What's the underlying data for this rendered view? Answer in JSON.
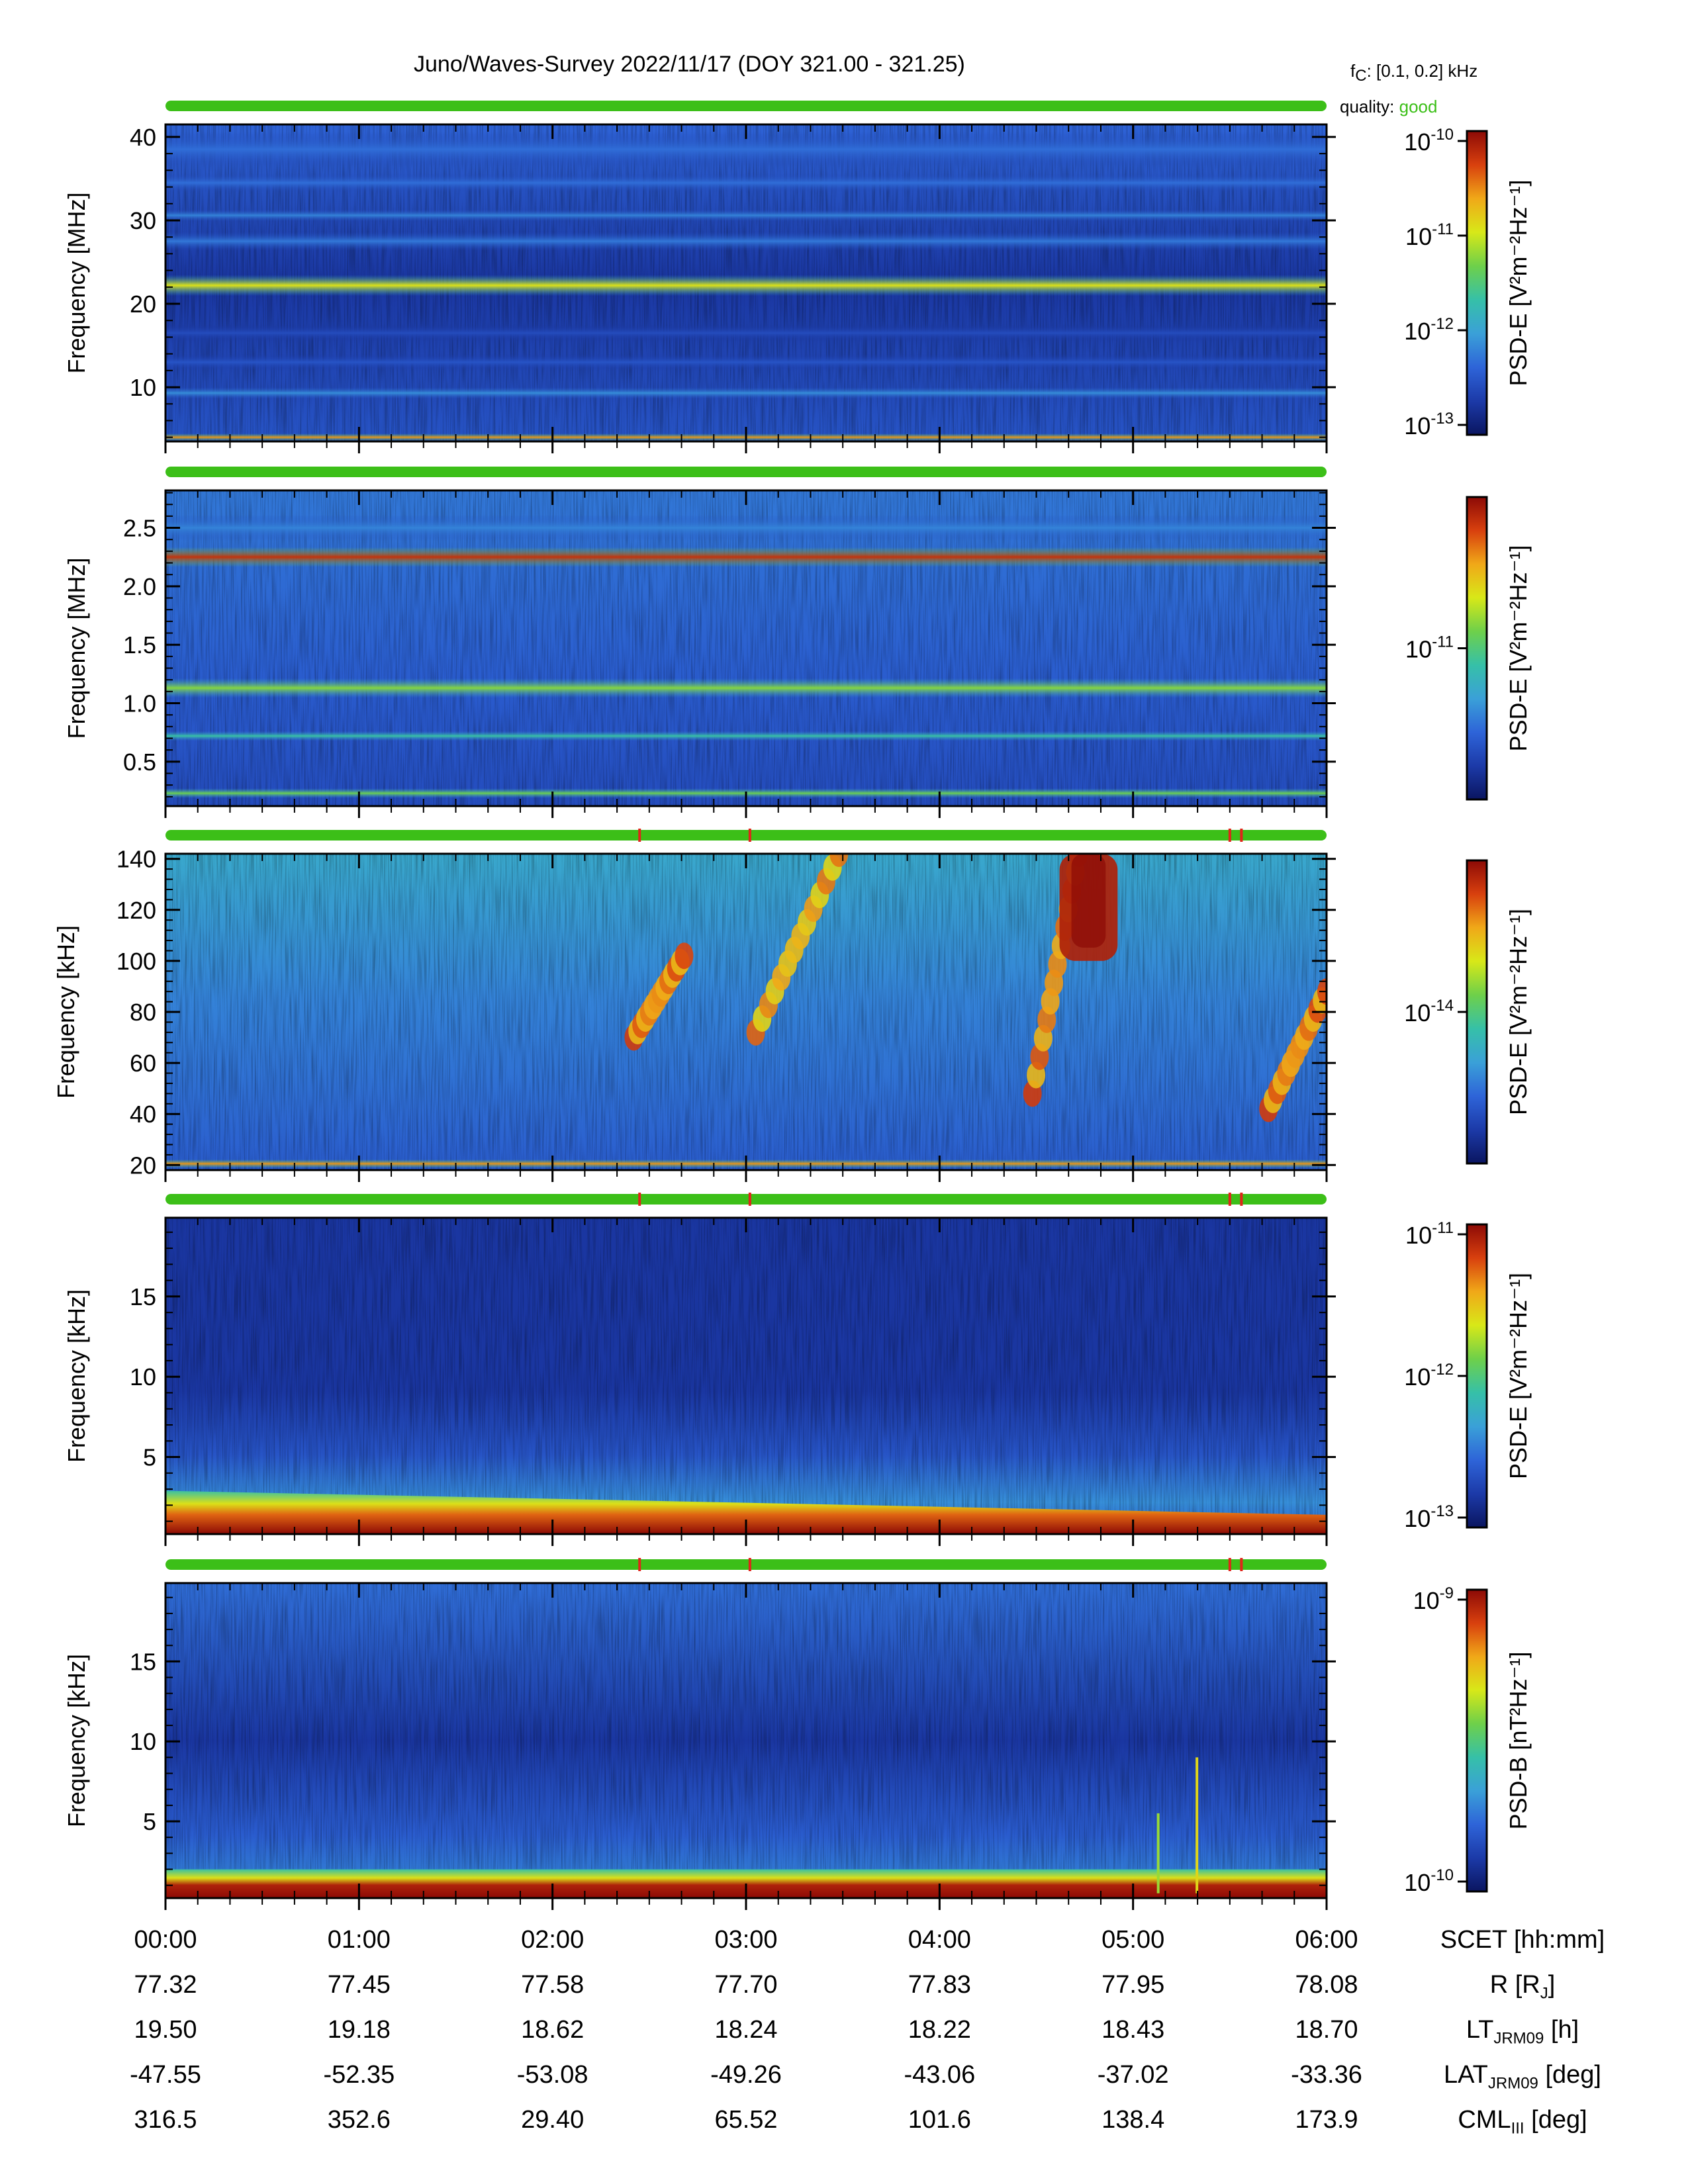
{
  "header": {
    "title": "Juno/Waves-Survey  2022/11/17 (DOY 321.00 - 321.25)",
    "fc_label": "f",
    "fc_sub": "C",
    "fc_value": ": [0.1, 0.2] kHz",
    "quality_label": "quality:",
    "quality_value": "good"
  },
  "colors": {
    "quality_good": "#3cbf18",
    "quality_flag": "#e0251a",
    "colormap": [
      "#0a1560",
      "#1c3aa8",
      "#2e64d8",
      "#3aa0d8",
      "#36c0a8",
      "#6ed04a",
      "#d8e818",
      "#f0a818",
      "#d8400e",
      "#8c0a06"
    ]
  },
  "chart_data": [
    {
      "type": "heatmap",
      "ylabel": "Frequency [MHz]",
      "yticks": [
        10,
        20,
        30,
        40
      ],
      "ylim": [
        3.5,
        41.5
      ],
      "colorbar_label": "PSD-E [V²m⁻²Hz⁻¹]",
      "colorbar_ticks": [
        "10-10",
        "10-11",
        "10-12",
        "10-13"
      ],
      "colorbar_tick_exps": [
        "-10",
        "-11",
        "-12",
        "-13"
      ],
      "quality_flags": [],
      "features": [
        {
          "feature": "band",
          "f": 22.2,
          "width": 0.9,
          "level": 0.68
        },
        {
          "feature": "band",
          "f": 30.6,
          "width": 0.5,
          "level": 0.28
        },
        {
          "feature": "band",
          "f": 27.5,
          "width": 0.8,
          "level": 0.26
        },
        {
          "feature": "band",
          "f": 34.5,
          "width": 0.8,
          "level": 0.24
        },
        {
          "feature": "band",
          "f": 38.5,
          "width": 1.5,
          "level": 0.24
        },
        {
          "feature": "band",
          "f": 9.3,
          "width": 0.5,
          "level": 0.3
        },
        {
          "feature": "band",
          "f": 13.0,
          "width": 0.7,
          "level": 0.18
        },
        {
          "feature": "band",
          "f": 16.5,
          "width": 0.7,
          "level": 0.16
        },
        {
          "feature": "band",
          "f": 4.0,
          "width": 0.25,
          "level": 0.8
        }
      ]
    },
    {
      "type": "heatmap",
      "ylabel": "Frequency [MHz]",
      "yticks": [
        0.5,
        1.0,
        1.5,
        2.0,
        2.5
      ],
      "ytick_labels": [
        "0.5",
        "1.0",
        "1.5",
        "2.0",
        "2.5"
      ],
      "ylim": [
        0.12,
        2.82
      ],
      "colorbar_label": "PSD-E [V²m⁻²Hz⁻¹]",
      "colorbar_ticks": [
        "10-11"
      ],
      "colorbar_tick_exps": [
        "-11"
      ],
      "quality_flags": [],
      "features": [
        {
          "feature": "band",
          "f": 2.25,
          "width": 0.06,
          "level": 0.92
        },
        {
          "feature": "band",
          "f": 1.13,
          "width": 0.06,
          "level": 0.58
        },
        {
          "feature": "band",
          "f": 0.72,
          "width": 0.03,
          "level": 0.45
        },
        {
          "feature": "band",
          "f": 0.23,
          "width": 0.03,
          "level": 0.55
        },
        {
          "feature": "band",
          "f": 2.5,
          "width": 0.08,
          "level": 0.28
        }
      ]
    },
    {
      "type": "heatmap",
      "ylabel": "Frequency [kHz]",
      "yticks": [
        20,
        40,
        60,
        80,
        100,
        120,
        140
      ],
      "ylim": [
        18,
        142
      ],
      "colorbar_label": "PSD-E [V²m⁻²Hz⁻¹]",
      "colorbar_ticks": [
        "10-14"
      ],
      "colorbar_tick_exps": [
        "-14"
      ],
      "quality_flags": [
        2.45,
        3.02,
        5.5,
        5.56
      ],
      "features": [
        {
          "feature": "band",
          "f": 20.5,
          "width": 1.2,
          "level": 0.8
        },
        {
          "feature": "burst",
          "t0": 2.42,
          "t1": 2.68,
          "f0": 70,
          "f1": 102,
          "level": 0.9
        },
        {
          "feature": "burst",
          "t0": 3.05,
          "t1": 3.48,
          "f0": 72,
          "f1": 142,
          "level": 0.85
        },
        {
          "feature": "burst",
          "t0": 4.48,
          "t1": 4.72,
          "f0": 48,
          "f1": 142,
          "level": 0.9
        },
        {
          "feature": "patch",
          "t0": 4.62,
          "t1": 4.92,
          "f0": 100,
          "f1": 142,
          "level": 0.95
        },
        {
          "feature": "burst",
          "t0": 5.7,
          "t1": 6.0,
          "f0": 42,
          "f1": 88,
          "level": 0.9
        }
      ]
    },
    {
      "type": "heatmap",
      "ylabel": "Frequency [kHz]",
      "yticks": [
        5,
        10,
        15
      ],
      "ylim": [
        0.2,
        19.9
      ],
      "colorbar_label": "PSD-E [V²m⁻²Hz⁻¹]",
      "colorbar_ticks": [
        "10-11",
        "10-12",
        "10-13"
      ],
      "colorbar_tick_exps": [
        "-11",
        "-12",
        "-13"
      ],
      "quality_flags": [
        2.45,
        3.02,
        5.5,
        5.56
      ],
      "features": [
        {
          "feature": "lowband",
          "f_top_start": 2.9,
          "f_top_end": 1.4,
          "level": 0.85
        }
      ]
    },
    {
      "type": "heatmap",
      "ylabel": "Frequency [kHz]",
      "yticks": [
        5,
        10,
        15
      ],
      "ylim": [
        0.2,
        19.9
      ],
      "colorbar_label": "PSD-B [nT²Hz⁻¹]",
      "colorbar_ticks": [
        "10-9",
        "10-10"
      ],
      "colorbar_tick_exps": [
        "-9",
        "-10"
      ],
      "quality_flags": [
        2.45,
        3.02,
        5.5,
        5.56
      ],
      "features": [
        {
          "feature": "lowband",
          "f_top_start": 2.0,
          "f_top_end": 2.0,
          "level": 0.95
        },
        {
          "feature": "spike",
          "t": 5.13,
          "f0": 0.5,
          "f1": 5.5,
          "level": 0.6
        },
        {
          "feature": "spike",
          "t": 5.33,
          "f0": 0.5,
          "f1": 9.0,
          "level": 0.7
        }
      ]
    }
  ],
  "time_axis": {
    "xlim": [
      0,
      6
    ],
    "labels": [
      "00:00",
      "01:00",
      "02:00",
      "03:00",
      "04:00",
      "05:00",
      "06:00"
    ]
  },
  "ephemeris": [
    {
      "label": "SCET [hh:mm]",
      "label_main": "SCET [hh:mm]",
      "label_sub": "",
      "label_tail": "",
      "values": [
        "00:00",
        "01:00",
        "02:00",
        "03:00",
        "04:00",
        "05:00",
        "06:00"
      ]
    },
    {
      "label": "R [RJ]",
      "label_main": "R [R",
      "label_sub": "J",
      "label_tail": "]",
      "values": [
        "77.32",
        "77.45",
        "77.58",
        "77.70",
        "77.83",
        "77.95",
        "78.08"
      ]
    },
    {
      "label": "LTJRM09 [h]",
      "label_main": "LT",
      "label_sub": "JRM09",
      "label_tail": " [h]",
      "values": [
        "19.50",
        "19.18",
        "18.62",
        "18.24",
        "18.22",
        "18.43",
        "18.70"
      ]
    },
    {
      "label": "LATJRM09 [deg]",
      "label_main": "LAT",
      "label_sub": "JRM09",
      "label_tail": " [deg]",
      "values": [
        "-47.55",
        "-52.35",
        "-53.08",
        "-49.26",
        "-43.06",
        "-37.02",
        "-33.36"
      ]
    },
    {
      "label": "CMLIII [deg]",
      "label_main": "CML",
      "label_sub": "III",
      "label_tail": " [deg]",
      "values": [
        "316.5",
        "352.6",
        "29.40",
        "65.52",
        "101.6",
        "138.4",
        "173.9"
      ]
    }
  ]
}
